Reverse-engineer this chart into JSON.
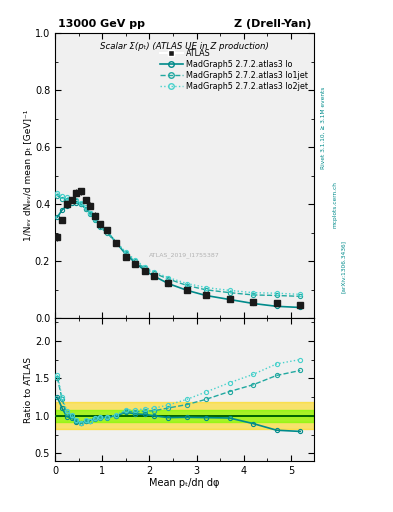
{
  "title_left": "13000 GeV pp",
  "title_right": "Z (Drell-Yan)",
  "plot_title": "Scalar Σ(pₜ) (ATLAS UE in Z production)",
  "ylabel_main": "1/Nₑᵥ dNₑᵥ/d mean pₜ [GeV]⁻¹",
  "ylabel_ratio": "Ratio to ATLAS",
  "xlabel": "Mean pₜ/dη dφ",
  "rivet_label": "Rivet 3.1.10, ≥ 3.1M events",
  "arxiv_label": "[arXiv:1306.3436]",
  "mcplots_label": "mcplots.cern.ch",
  "watermark": "ATLAS_2019_I1755387",
  "data_x": [
    0.05,
    0.15,
    0.25,
    0.35,
    0.45,
    0.55,
    0.65,
    0.75,
    0.85,
    0.95,
    1.1,
    1.3,
    1.5,
    1.7,
    1.9,
    2.1,
    2.4,
    2.8,
    3.2,
    3.7,
    4.2,
    4.7,
    5.2
  ],
  "data_y": [
    0.285,
    0.345,
    0.4,
    0.415,
    0.44,
    0.445,
    0.415,
    0.395,
    0.36,
    0.33,
    0.31,
    0.265,
    0.215,
    0.19,
    0.165,
    0.148,
    0.125,
    0.1,
    0.082,
    0.068,
    0.058,
    0.052,
    0.048
  ],
  "data_yerr": [
    0.015,
    0.012,
    0.012,
    0.012,
    0.012,
    0.012,
    0.012,
    0.012,
    0.012,
    0.012,
    0.01,
    0.01,
    0.01,
    0.008,
    0.008,
    0.008,
    0.007,
    0.006,
    0.005,
    0.005,
    0.004,
    0.004,
    0.004
  ],
  "mc1_x": [
    0.05,
    0.15,
    0.25,
    0.35,
    0.45,
    0.55,
    0.65,
    0.75,
    0.85,
    0.95,
    1.1,
    1.3,
    1.5,
    1.7,
    1.9,
    2.1,
    2.4,
    2.8,
    3.2,
    3.7,
    4.2,
    4.7,
    5.2
  ],
  "mc1_y": [
    0.355,
    0.38,
    0.395,
    0.405,
    0.405,
    0.4,
    0.385,
    0.37,
    0.35,
    0.325,
    0.305,
    0.265,
    0.225,
    0.195,
    0.168,
    0.148,
    0.122,
    0.098,
    0.08,
    0.066,
    0.052,
    0.042,
    0.038
  ],
  "mc2_x": [
    0.05,
    0.15,
    0.25,
    0.35,
    0.45,
    0.55,
    0.65,
    0.75,
    0.85,
    0.95,
    1.1,
    1.3,
    1.5,
    1.7,
    1.9,
    2.1,
    2.4,
    2.8,
    3.2,
    3.7,
    4.2,
    4.7,
    5.2
  ],
  "mc2_y": [
    0.43,
    0.42,
    0.415,
    0.415,
    0.41,
    0.4,
    0.385,
    0.365,
    0.345,
    0.32,
    0.3,
    0.265,
    0.228,
    0.2,
    0.175,
    0.158,
    0.138,
    0.115,
    0.1,
    0.09,
    0.082,
    0.08,
    0.077
  ],
  "mc3_x": [
    0.05,
    0.15,
    0.25,
    0.35,
    0.45,
    0.55,
    0.65,
    0.75,
    0.85,
    0.95,
    1.1,
    1.3,
    1.5,
    1.7,
    1.9,
    2.1,
    2.4,
    2.8,
    3.2,
    3.7,
    4.2,
    4.7,
    5.2
  ],
  "mc3_y": [
    0.44,
    0.43,
    0.425,
    0.42,
    0.415,
    0.405,
    0.39,
    0.37,
    0.35,
    0.325,
    0.305,
    0.268,
    0.232,
    0.205,
    0.18,
    0.163,
    0.143,
    0.122,
    0.108,
    0.098,
    0.09,
    0.088,
    0.084
  ],
  "teal_solid": "#008B8B",
  "teal_dashed": "#20A8A0",
  "teal_dotted": "#48D1CC",
  "data_color": "#1a1a1a",
  "xlim": [
    0.0,
    5.5
  ],
  "ylim_main": [
    0.0,
    1.0
  ],
  "ylim_ratio": [
    0.4,
    2.3
  ],
  "yticks_main": [
    0.0,
    0.2,
    0.4,
    0.6,
    0.8,
    1.0
  ],
  "yticks_ratio": [
    0.5,
    1.0,
    1.5,
    2.0
  ],
  "xticks": [
    0,
    1,
    2,
    3,
    4,
    5
  ],
  "bg_color": "#f0f0f0",
  "band_yellow_lo": 0.82,
  "band_yellow_hi": 1.18,
  "band_green_lo": 0.92,
  "band_green_hi": 1.08
}
